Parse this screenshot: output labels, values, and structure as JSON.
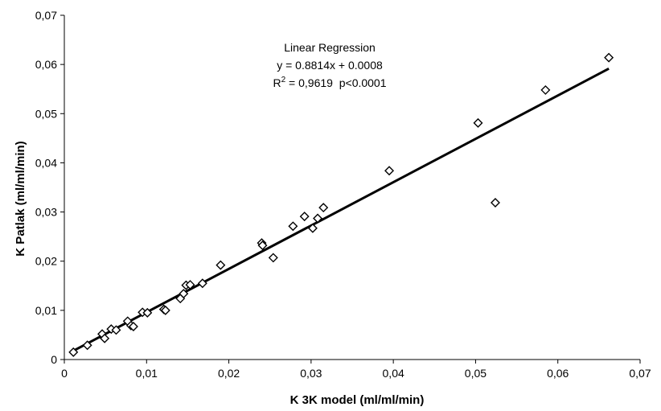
{
  "chart_data": {
    "type": "scatter",
    "xlabel": "K 3K model (ml/ml/min)",
    "ylabel": "K Patlak (ml/ml/min)",
    "xlim": [
      0,
      0.07
    ],
    "ylim": [
      0,
      0.07
    ],
    "x_ticks": [
      "0",
      "0,01",
      "0,02",
      "0,03",
      "0,04",
      "0,05",
      "0,06",
      "0,07"
    ],
    "y_ticks": [
      "0",
      "0,01",
      "0,02",
      "0,03",
      "0,04",
      "0,05",
      "0,06",
      "0,07"
    ],
    "grid": false,
    "annotation": {
      "title": "Linear Regression",
      "equation": "y = 0.8814x + 0.0008",
      "r2_prefix": "R",
      "r2_superscript": "2",
      "r2_rest": " = 0,9619  p<0.0001"
    },
    "regression_line": {
      "slope": 0.8814,
      "intercept": 0.0008,
      "x_range": [
        0.001,
        0.0662
      ]
    },
    "series": [
      {
        "marker": "diamond",
        "points": [
          [
            0.0011,
            0.0015
          ],
          [
            0.0028,
            0.0029
          ],
          [
            0.0046,
            0.0052
          ],
          [
            0.0049,
            0.0043
          ],
          [
            0.0057,
            0.0062
          ],
          [
            0.0063,
            0.006
          ],
          [
            0.0077,
            0.0078
          ],
          [
            0.0081,
            0.0069
          ],
          [
            0.0084,
            0.0067
          ],
          [
            0.0095,
            0.0096
          ],
          [
            0.0101,
            0.0095
          ],
          [
            0.0121,
            0.0102
          ],
          [
            0.0123,
            0.01
          ],
          [
            0.0141,
            0.0124
          ],
          [
            0.0145,
            0.0134
          ],
          [
            0.0148,
            0.0151
          ],
          [
            0.0153,
            0.0152
          ],
          [
            0.0168,
            0.0155
          ],
          [
            0.019,
            0.0192
          ],
          [
            0.024,
            0.0237
          ],
          [
            0.0241,
            0.0232
          ],
          [
            0.0254,
            0.0207
          ],
          [
            0.0278,
            0.0271
          ],
          [
            0.0292,
            0.0291
          ],
          [
            0.0302,
            0.0267
          ],
          [
            0.0308,
            0.0287
          ],
          [
            0.0315,
            0.0309
          ],
          [
            0.0395,
            0.0384
          ],
          [
            0.0503,
            0.0481
          ],
          [
            0.0524,
            0.0319
          ],
          [
            0.0585,
            0.0548
          ],
          [
            0.0662,
            0.0614
          ]
        ]
      }
    ]
  }
}
